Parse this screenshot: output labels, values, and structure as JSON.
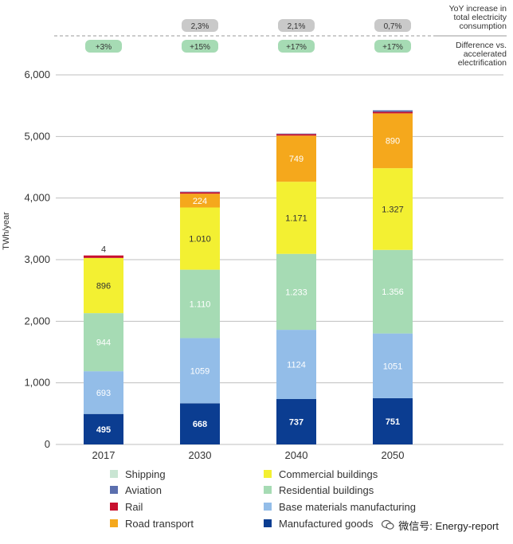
{
  "chart_data": {
    "type": "bar",
    "stacked": true,
    "ylabel": "TWh/year",
    "ylim": [
      0,
      6000
    ],
    "yticks": [
      "0",
      "1,000",
      "2,000",
      "3,000",
      "4,000",
      "5,000",
      "6,000"
    ],
    "ytick_values": [
      0,
      1000,
      2000,
      3000,
      4000,
      5000,
      6000
    ],
    "categories": [
      "2017",
      "2030",
      "2040",
      "2050"
    ],
    "series": [
      {
        "name": "Manufactured goods",
        "color": "#0b3d91",
        "label_color": "#ffffff",
        "values": [
          495,
          668,
          737,
          751
        ],
        "labels": [
          "495",
          "668",
          "737",
          "751"
        ]
      },
      {
        "name": "Base materials manufacturing",
        "color": "#93bde8",
        "label_color": "#ffffff",
        "values": [
          693,
          1059,
          1124,
          1051
        ],
        "labels": [
          "693",
          "1059",
          "1124",
          "1051"
        ]
      },
      {
        "name": "Residential buildings",
        "color": "#a6dbb4",
        "label_color": "#ffffff",
        "values": [
          944,
          1110,
          1233,
          1356
        ],
        "labels": [
          "944",
          "1.110",
          "1.233",
          "1.356"
        ]
      },
      {
        "name": "Commercial buildings",
        "color": "#f3f032",
        "label_color": "#333333",
        "values": [
          896,
          1010,
          1171,
          1327
        ],
        "labels": [
          "896",
          "1.010",
          "1.171",
          "1.327"
        ]
      },
      {
        "name": "Road transport",
        "color": "#f5a81c",
        "label_color": "#ffffff",
        "values": [
          0,
          224,
          749,
          890
        ],
        "labels": [
          "",
          "224",
          "749",
          "890"
        ]
      },
      {
        "name": "Rail",
        "color": "#c8102e",
        "label_color": "#333333",
        "values": [
          40,
          25,
          25,
          25
        ],
        "labels": [
          "",
          "",
          "",
          ""
        ]
      },
      {
        "name": "Aviation",
        "color": "#5b6fae",
        "label_color": "#333333",
        "values": [
          0,
          8,
          8,
          25
        ],
        "labels": [
          "",
          "",
          "",
          ""
        ]
      },
      {
        "name": "Shipping",
        "color": "#c9e5d3",
        "label_color": "#333333",
        "values": [
          0,
          0,
          0,
          0
        ],
        "labels": [
          "",
          "",
          "",
          ""
        ]
      }
    ],
    "top_labels": [
      "4",
      "",
      "",
      ""
    ],
    "yoy_increase": [
      "",
      "2,3%",
      "2,1%",
      "0,7%"
    ],
    "difference": [
      "+3%",
      "+15%",
      "+17%",
      "+17%"
    ],
    "header_yoy": [
      "YoY increase in",
      "total electricity",
      "consumption"
    ],
    "header_diff": [
      "Difference vs.",
      "accelerated",
      "electrification"
    ]
  },
  "legend": [
    {
      "label": "Shipping",
      "color": "#c9e5d3"
    },
    {
      "label": "Aviation",
      "color": "#5b6fae"
    },
    {
      "label": "Rail",
      "color": "#c8102e"
    },
    {
      "label": "Road transport",
      "color": "#f5a81c"
    },
    {
      "label": "Commercial buildings",
      "color": "#f3f032"
    },
    {
      "label": "Residential buildings",
      "color": "#a6dbb4"
    },
    {
      "label": "Base materials manufacturing",
      "color": "#93bde8"
    },
    {
      "label": "Manufactured goods",
      "color": "#0b3d91"
    }
  ],
  "watermark": {
    "text": "微信号: Energy-report"
  }
}
